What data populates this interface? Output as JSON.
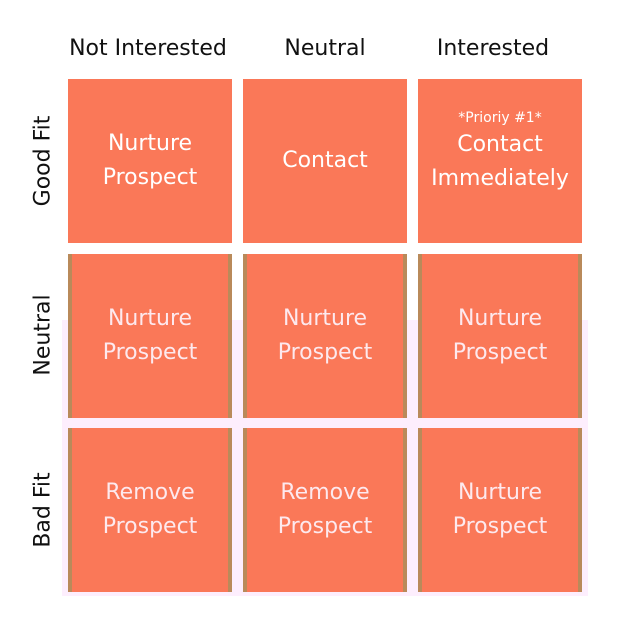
{
  "columns": [
    "Not Interested",
    "Neutral",
    "Interested"
  ],
  "rows": [
    "Good Fit",
    "Neutral",
    "Bad Fit"
  ],
  "cells": [
    [
      {
        "text": "Nurture Prospect"
      },
      {
        "text": "Contact"
      },
      {
        "note": "*Prioriy #1*",
        "text": "Contact Immediately"
      }
    ],
    [
      {
        "text": "Nurture Prospect"
      },
      {
        "text": "Nurture Prospect"
      },
      {
        "text": "Nurture Prospect"
      }
    ],
    [
      {
        "text": "Remove Prospect"
      },
      {
        "text": "Remove Prospect"
      },
      {
        "text": "Nurture Prospect"
      }
    ]
  ]
}
